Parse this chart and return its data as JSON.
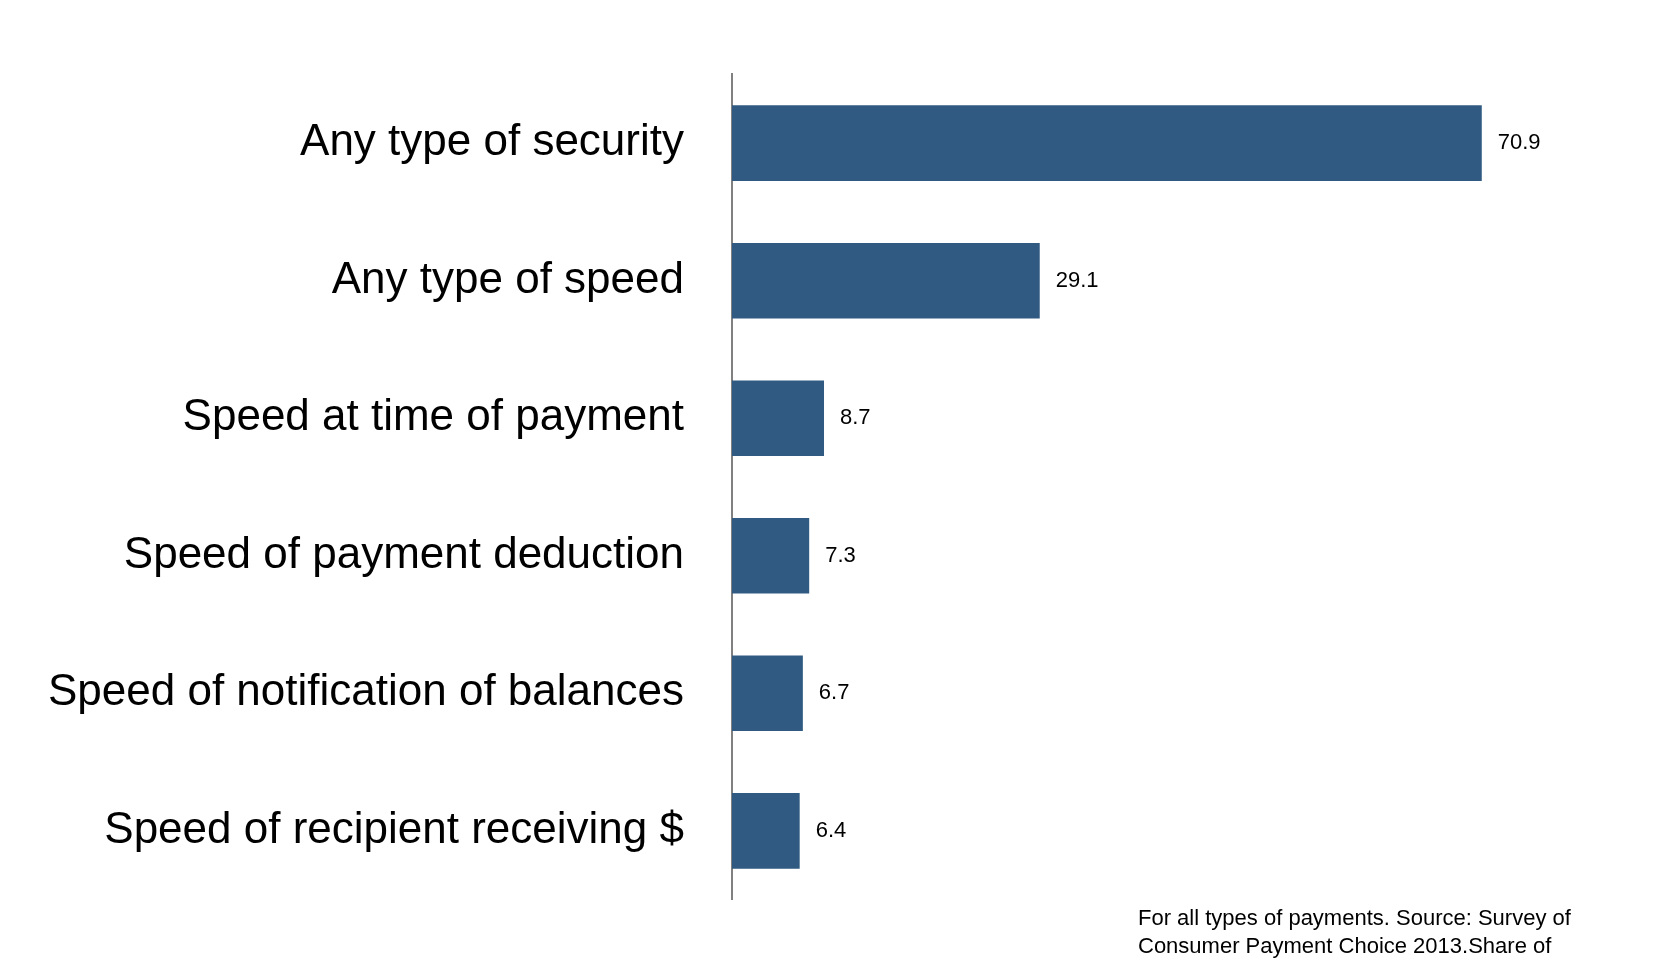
{
  "chart_data": {
    "type": "bar",
    "orientation": "horizontal",
    "categories": [
      "Any type of security",
      "Any type of speed",
      "Speed at time of payment",
      "Speed of payment deduction",
      "Speed of notification of balances",
      "Speed of recipient receiving $"
    ],
    "values": [
      70.9,
      29.1,
      8.7,
      7.3,
      6.7,
      6.4
    ],
    "color": "#305a82",
    "data_labels": true,
    "legend": false,
    "grid": false,
    "annotations": [
      "For all types of payments. Source: Survey of Consumer Payment Choice 2013.Share of"
    ]
  }
}
